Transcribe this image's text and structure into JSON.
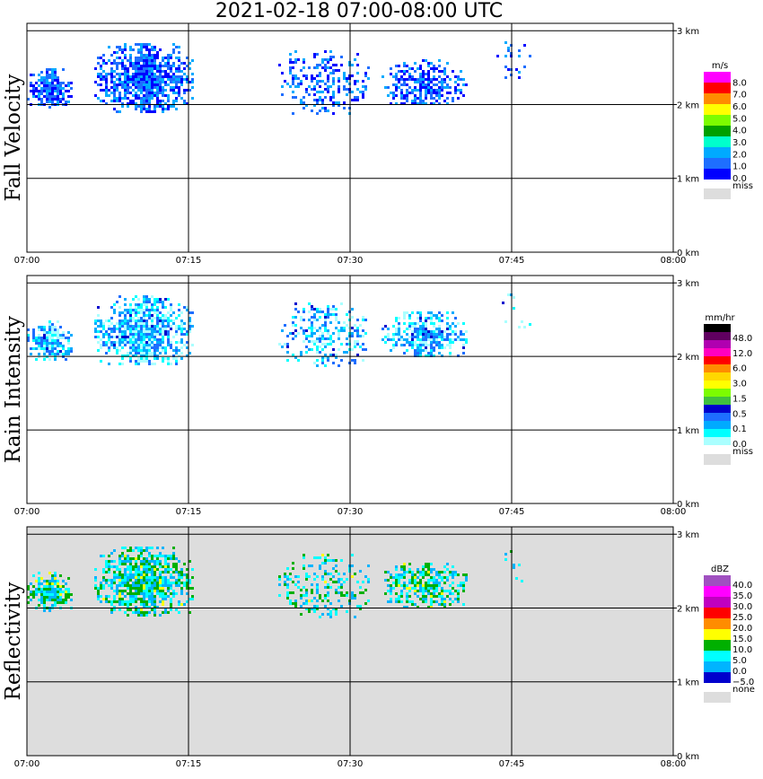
{
  "title": "2021-02-18   07:00-08:00 UTC",
  "chart_data": [
    {
      "type": "heatmap",
      "name": "fall-velocity",
      "ylabel": "Fall Velocity",
      "x_ticks": [
        "07:00",
        "07:15",
        "07:30",
        "07:45",
        "08:00"
      ],
      "y_ticks": [
        "0 km",
        "1 km",
        "2 km",
        "3 km"
      ],
      "ylim": [
        0,
        3.1
      ],
      "background": "#ffffff",
      "legend": {
        "unit": "m/s",
        "levels": [
          "8.0",
          "7.0",
          "6.0",
          "5.0",
          "4.0",
          "3.0",
          "2.0",
          "1.0",
          "0.0"
        ],
        "colors": [
          "#ff00ff",
          "#ff0000",
          "#ff8c00",
          "#ffff00",
          "#7cfc00",
          "#00a000",
          "#00ffcc",
          "#00aaff",
          "#1e6eff",
          "#0000ff"
        ],
        "missing_label": "miss",
        "missing_color": "#dddddd"
      }
    },
    {
      "type": "heatmap",
      "name": "rain-intensity",
      "ylabel": "Rain Intensity",
      "x_ticks": [
        "07:00",
        "07:15",
        "07:30",
        "07:45",
        "08:00"
      ],
      "y_ticks": [
        "0 km",
        "1 km",
        "2 km",
        "3 km"
      ],
      "ylim": [
        0,
        3.1
      ],
      "background": "#ffffff",
      "legend": {
        "unit": "mm/hr",
        "levels": [
          "48.0",
          "12.0",
          "6.0",
          "3.0",
          "1.5",
          "0.5",
          "0.1",
          "0.0"
        ],
        "colors": [
          "#000000",
          "#600060",
          "#b000b0",
          "#ff00c0",
          "#ff0000",
          "#ff8c00",
          "#ffd700",
          "#ffff00",
          "#7cfc00",
          "#40c040",
          "#0000cd",
          "#1e6eff",
          "#00aaff",
          "#00ffff",
          "#aaffff"
        ],
        "missing_label": "miss",
        "missing_color": "#dddddd"
      }
    },
    {
      "type": "heatmap",
      "name": "reflectivity",
      "ylabel": "Reflectivity",
      "x_ticks": [
        "07:00",
        "07:15",
        "07:30",
        "07:45",
        "08:00"
      ],
      "y_ticks": [
        "0 km",
        "1 km",
        "2 km",
        "3 km"
      ],
      "ylim": [
        0,
        3.1
      ],
      "background": "#dddddd",
      "legend": {
        "unit": "dBZ",
        "levels": [
          "40.0",
          "35.0",
          "30.0",
          "25.0",
          "20.0",
          "15.0",
          "10.0",
          "5.0",
          "0.0",
          "−5.0"
        ],
        "colors": [
          "#a050c0",
          "#ff00ff",
          "#c000c0",
          "#ff0000",
          "#ff8c00",
          "#ffff00",
          "#00b000",
          "#00ffff",
          "#00b4ff",
          "#0000cd"
        ],
        "missing_label": "none",
        "missing_color": "#dddddd"
      }
    }
  ]
}
